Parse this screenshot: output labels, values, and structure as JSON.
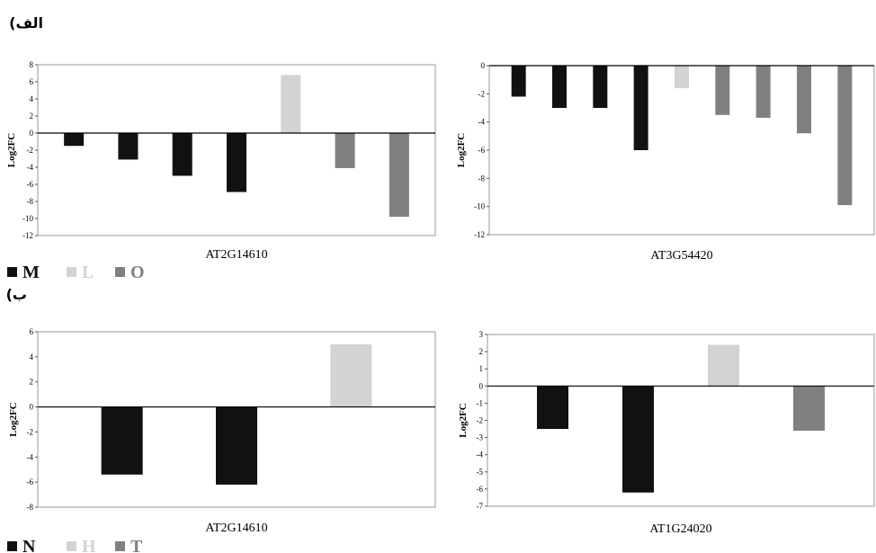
{
  "panel_labels": {
    "a": "(الف",
    "b": "(ب"
  },
  "legend_a": [
    {
      "label": "M",
      "color": "#111111"
    },
    {
      "label": "L",
      "color": "#d3d3d3"
    },
    {
      "label": "O",
      "color": "#808080"
    }
  ],
  "legend_b": [
    {
      "label": "N",
      "color": "#111111"
    },
    {
      "label": "H",
      "color": "#d3d3d3"
    },
    {
      "label": "T",
      "color": "#808080"
    }
  ],
  "colors": {
    "black": "#111111",
    "light": "#d3d3d3",
    "gray": "#808080"
  },
  "chart_data": [
    {
      "type": "bar",
      "xlabel": "AT2G14610",
      "ylabel": "Log2FC",
      "ylim": [
        -12,
        8
      ],
      "yticks": [
        8,
        6,
        4,
        2,
        0,
        -2,
        -4,
        -6,
        -8,
        -10,
        -12
      ],
      "values": [
        -1.5,
        -3.1,
        -5.0,
        -6.9,
        6.8,
        -4.1,
        -9.8
      ],
      "bar_colors": [
        "black",
        "black",
        "black",
        "black",
        "light",
        "gray",
        "gray"
      ],
      "grid": false
    },
    {
      "type": "bar",
      "xlabel": "AT3G54420",
      "ylabel": "Log2FC",
      "ylim": [
        -12,
        0
      ],
      "yticks": [
        0,
        -2,
        -4,
        -6,
        -8,
        -10,
        -12
      ],
      "values": [
        -2.2,
        -3.0,
        -3.0,
        -6.0,
        -1.6,
        -3.5,
        -3.7,
        -4.8,
        -9.9
      ],
      "bar_colors": [
        "black",
        "black",
        "black",
        "black",
        "light",
        "gray",
        "gray",
        "gray",
        "gray"
      ],
      "grid": false
    },
    {
      "type": "bar",
      "xlabel": "AT2G14610",
      "ylabel": "Log2FC",
      "ylim": [
        -8,
        6
      ],
      "yticks": [
        6,
        4,
        2,
        0,
        -2,
        -4,
        -6,
        -8
      ],
      "values": [
        -5.4,
        -6.2,
        5.0
      ],
      "bar_colors": [
        "black",
        "black",
        "light"
      ],
      "grid": false
    },
    {
      "type": "bar",
      "xlabel": "AT1G24020",
      "ylabel": "Log2FC",
      "ylim": [
        -7,
        3
      ],
      "yticks": [
        3,
        2,
        1,
        0,
        -1,
        -2,
        -3,
        -4,
        -5,
        -6,
        -7
      ],
      "values": [
        -2.5,
        -6.2,
        2.4,
        -2.6
      ],
      "bar_colors": [
        "black",
        "black",
        "light",
        "gray"
      ],
      "grid": false
    }
  ]
}
